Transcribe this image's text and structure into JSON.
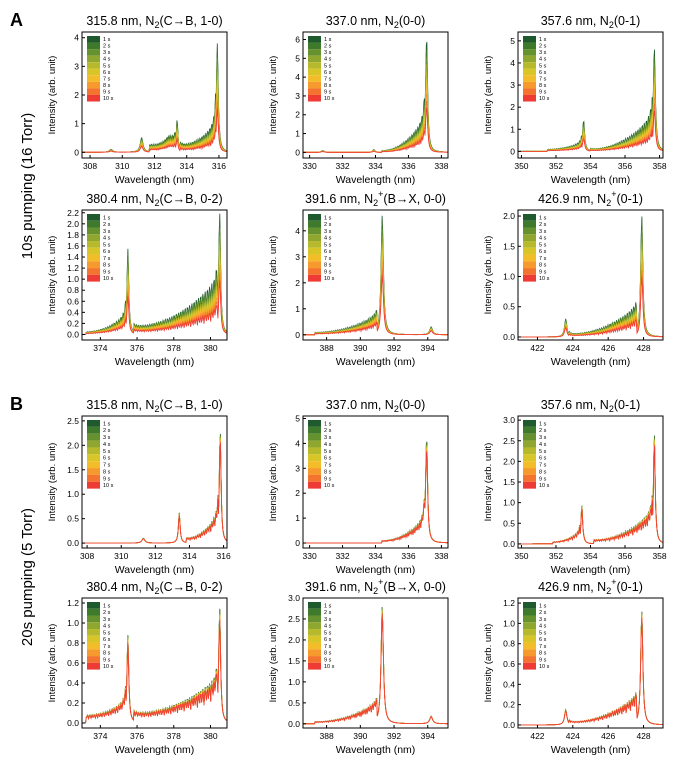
{
  "figure": {
    "section_a": {
      "letter": "A",
      "row_label": "10s pumping (16 Torr)"
    },
    "section_b": {
      "letter": "B",
      "row_label": "20s pumping (5 Torr)"
    }
  },
  "legend_labels": [
    "1 s",
    "2 s",
    "3 s",
    "4 s",
    "5 s",
    "6 s",
    "7 s",
    "8 s",
    "9 s",
    "10 s"
  ],
  "series_colors": [
    "#1e5a2e",
    "#3f7a2c",
    "#65912f",
    "#8fa62f",
    "#b6b92c",
    "#d8c629",
    "#f3bd2a",
    "#f79a2e",
    "#f4742f",
    "#ef3b35"
  ],
  "chart_data": [
    {
      "id": "a1",
      "type": "line",
      "title_main": "315.8 nm, N",
      "title_sub": "2",
      "title_rest": "(C→B, 1-0)",
      "xlabel": "Wavelength (nm)",
      "ylabel": "Intensity (arb. unit)",
      "xlim": [
        307.5,
        316.5
      ],
      "ylim": [
        -0.2,
        4.2
      ],
      "xticks": [
        308,
        310,
        312,
        314,
        316
      ],
      "yticks": [
        0,
        1,
        2,
        3,
        4
      ],
      "peaks": [
        [
          309.3,
          0.1,
          0.12
        ],
        [
          311.2,
          0.5,
          0.1
        ],
        [
          312.9,
          0.2,
          0.3
        ],
        [
          313.4,
          1.1,
          0.06
        ],
        [
          315.9,
          3.8,
          0.07
        ]
      ],
      "bands": [
        [
          311.7,
          313.3,
          0.25,
          0.45
        ],
        [
          313.6,
          315.8,
          0.25,
          1.0
        ]
      ],
      "decay": 0.6
    },
    {
      "id": "a2",
      "type": "line",
      "title_main": "337.0 nm, N",
      "title_sub": "2",
      "title_rest": "(0-0)",
      "xlabel": "Wavelength (nm)",
      "ylabel": "Intensity (arb. unit)",
      "xlim": [
        329.6,
        338.4
      ],
      "ylim": [
        -0.3,
        6.4
      ],
      "xticks": [
        330,
        332,
        334,
        336,
        338
      ],
      "yticks": [
        0,
        1,
        2,
        3,
        4,
        5,
        6
      ],
      "peaks": [
        [
          330.8,
          0.1,
          0.1
        ],
        [
          333.9,
          0.15,
          0.08
        ],
        [
          337.1,
          6.2,
          0.07
        ]
      ],
      "bands": [
        [
          334.4,
          337.0,
          0.1,
          1.8
        ]
      ],
      "decay": 0.6
    },
    {
      "id": "a3",
      "type": "line",
      "title_main": "357.6 nm, N",
      "title_sub": "2",
      "title_rest": "(0-1)",
      "xlabel": "Wavelength (nm)",
      "ylabel": "Intensity (arb. unit)",
      "xlim": [
        349.8,
        358.2
      ],
      "ylim": [
        -0.3,
        5.4
      ],
      "xticks": [
        350,
        352,
        354,
        356,
        358
      ],
      "yticks": [
        0,
        1,
        2,
        3,
        4,
        5
      ],
      "peaks": [
        [
          353.6,
          1.4,
          0.07
        ],
        [
          357.7,
          4.7,
          0.07
        ]
      ],
      "bands": [
        [
          351.5,
          353.5,
          0.1,
          0.4
        ],
        [
          354.0,
          357.6,
          0.1,
          1.6
        ]
      ],
      "decay": 0.6
    },
    {
      "id": "a4",
      "type": "line",
      "title_main": "380.4 nm, N",
      "title_sub": "2",
      "title_rest": "(C→B, 0-2)",
      "xlabel": "Wavelength (nm)",
      "ylabel": "Intensity (arb. unit)",
      "xlim": [
        373.0,
        380.9
      ],
      "ylim": [
        -0.1,
        2.25
      ],
      "xticks": [
        374,
        376,
        378,
        380
      ],
      "yticks": [
        0.0,
        0.2,
        0.4,
        0.6,
        0.8,
        1.0,
        1.2,
        1.4,
        1.6,
        1.8,
        2.0,
        2.2
      ],
      "peaks": [
        [
          375.5,
          1.55,
          0.06
        ],
        [
          380.5,
          2.2,
          0.06
        ]
      ],
      "bands": [
        [
          373.2,
          375.4,
          0.05,
          0.35
        ],
        [
          375.8,
          380.4,
          0.15,
          1.0
        ]
      ],
      "decay": 0.55
    },
    {
      "id": "a5",
      "type": "line",
      "title_main": "391.6 nm, N",
      "title_sub": "2",
      "title_sup": "+",
      "title_rest": "(B→X, 0-0)",
      "xlabel": "Wavelength (nm)",
      "ylabel": "Intensity (arb. unit)",
      "xlim": [
        386.6,
        395.2
      ],
      "ylim": [
        -0.2,
        4.8
      ],
      "xticks": [
        388,
        390,
        392,
        394
      ],
      "yticks": [
        0,
        1,
        2,
        3,
        4
      ],
      "peaks": [
        [
          391.3,
          4.6,
          0.08
        ],
        [
          394.2,
          0.3,
          0.1
        ]
      ],
      "bands": [
        [
          387.3,
          391.0,
          0.1,
          0.75
        ]
      ],
      "decay": 0.5
    },
    {
      "id": "a6",
      "type": "line",
      "title_main": "426.9 nm, N",
      "title_sub": "2",
      "title_sup": "+",
      "title_rest": "(0-1)",
      "xlabel": "Wavelength (nm)",
      "ylabel": "Intensity (arb. unit)",
      "xlim": [
        420.9,
        429.1
      ],
      "ylim": [
        -0.05,
        2.1
      ],
      "xticks": [
        422,
        424,
        426,
        428
      ],
      "yticks": [
        0.0,
        0.5,
        1.0,
        1.5,
        2.0
      ],
      "peaks": [
        [
          423.6,
          0.3,
          0.08
        ],
        [
          427.9,
          2.0,
          0.07
        ]
      ],
      "bands": [
        [
          423.8,
          427.6,
          0.05,
          0.5
        ]
      ],
      "decay": 0.5
    },
    {
      "id": "b1",
      "type": "line",
      "title_main": "315.8 nm, N",
      "title_sub": "2",
      "title_rest": "(C→B, 1-0)",
      "xlabel": "Wavelength (nm)",
      "ylabel": "Intensity (arb. unit)",
      "xlim": [
        307.7,
        316.2
      ],
      "ylim": [
        -0.1,
        2.6
      ],
      "xticks": [
        308,
        310,
        312,
        314,
        316
      ],
      "yticks": [
        0.0,
        0.5,
        1.0,
        1.5,
        2.0,
        2.5
      ],
      "peaks": [
        [
          311.3,
          0.1,
          0.1
        ],
        [
          313.4,
          0.62,
          0.06
        ],
        [
          315.8,
          2.3,
          0.06
        ]
      ],
      "bands": [
        [
          313.8,
          315.7,
          0.1,
          0.6
        ]
      ],
      "decay": 0.08
    },
    {
      "id": "b2",
      "type": "line",
      "title_main": "337.0 nm, N",
      "title_sub": "2",
      "title_rest": "(0-0)",
      "xlabel": "Wavelength (nm)",
      "ylabel": "Intensity (arb. unit)",
      "xlim": [
        329.6,
        338.4
      ],
      "ylim": [
        -0.2,
        5.1
      ],
      "xticks": [
        330,
        332,
        334,
        336,
        338
      ],
      "yticks": [
        0,
        1,
        2,
        3,
        4,
        5
      ],
      "peaks": [
        [
          337.1,
          4.3,
          0.07
        ]
      ],
      "bands": [
        [
          334.4,
          337.0,
          0.1,
          1.0
        ]
      ],
      "decay": 0.1
    },
    {
      "id": "b3",
      "type": "line",
      "title_main": "357.6 nm, N",
      "title_sub": "2",
      "title_rest": "(0-1)",
      "xlabel": "Wavelength (nm)",
      "ylabel": "Intensity (arb. unit)",
      "xlim": [
        349.8,
        358.2
      ],
      "ylim": [
        -0.1,
        3.1
      ],
      "xticks": [
        350,
        352,
        354,
        356,
        358
      ],
      "yticks": [
        0.0,
        0.5,
        1.0,
        1.5,
        2.0,
        2.5,
        3.0
      ],
      "peaks": [
        [
          353.5,
          0.95,
          0.06
        ],
        [
          357.7,
          2.7,
          0.06
        ]
      ],
      "bands": [
        [
          351.8,
          353.4,
          0.05,
          0.3
        ],
        [
          354.2,
          357.6,
          0.1,
          0.8
        ]
      ],
      "decay": 0.1
    },
    {
      "id": "b4",
      "type": "line",
      "title_main": "380.4 nm, N",
      "title_sub": "2",
      "title_rest": "(C→B, 0-2)",
      "xlabel": "Wavelength (nm)",
      "ylabel": "Intensity (arb. unit)",
      "xlim": [
        373.0,
        380.9
      ],
      "ylim": [
        -0.05,
        1.25
      ],
      "xticks": [
        374,
        376,
        378,
        380
      ],
      "yticks": [
        0.0,
        0.2,
        0.4,
        0.6,
        0.8,
        1.0,
        1.2
      ],
      "peaks": [
        [
          375.5,
          0.88,
          0.06
        ],
        [
          380.5,
          1.15,
          0.06
        ]
      ],
      "bands": [
        [
          373.2,
          375.4,
          0.08,
          0.22
        ],
        [
          375.8,
          380.4,
          0.1,
          0.45
        ]
      ],
      "decay": 0.1
    },
    {
      "id": "b5",
      "type": "line",
      "title_main": "391.6 nm, N",
      "title_sub": "2",
      "title_sup": "+",
      "title_rest": "(B→X, 0-0)",
      "xlabel": "Wavelength (nm)",
      "ylabel": "Intensity (arb. unit)",
      "xlim": [
        386.6,
        395.2
      ],
      "ylim": [
        -0.1,
        3.0
      ],
      "xticks": [
        388,
        390,
        392,
        394
      ],
      "yticks": [
        0.0,
        0.5,
        1.0,
        1.5,
        2.0,
        2.5,
        3.0
      ],
      "peaks": [
        [
          391.3,
          2.8,
          0.08
        ],
        [
          394.2,
          0.18,
          0.1
        ]
      ],
      "bands": [
        [
          387.3,
          391.0,
          0.05,
          0.5
        ]
      ],
      "decay": 0.06
    },
    {
      "id": "b6",
      "type": "line",
      "title_main": "426.9 nm, N",
      "title_sub": "2",
      "title_sup": "+",
      "title_rest": "(0-1)",
      "xlabel": "Wavelength (nm)",
      "ylabel": "Intensity (arb. unit)",
      "xlim": [
        420.9,
        429.1
      ],
      "ylim": [
        -0.03,
        1.25
      ],
      "xticks": [
        422,
        424,
        426,
        428
      ],
      "yticks": [
        0.0,
        0.2,
        0.4,
        0.6,
        0.8,
        1.0,
        1.2
      ],
      "peaks": [
        [
          423.6,
          0.15,
          0.08
        ],
        [
          427.9,
          1.12,
          0.07
        ]
      ],
      "bands": [
        [
          423.8,
          427.6,
          0.03,
          0.28
        ]
      ],
      "decay": 0.06
    }
  ]
}
